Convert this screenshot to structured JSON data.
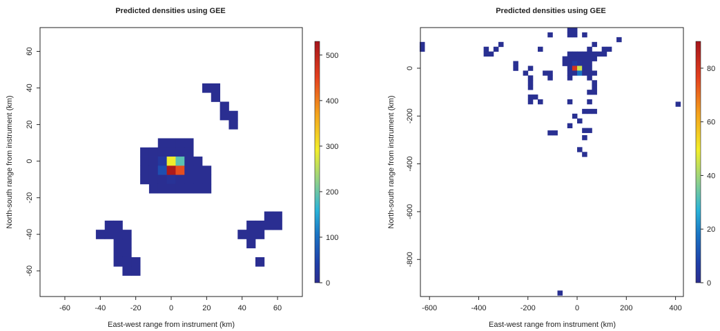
{
  "chart_data": [
    {
      "type": "heatmap",
      "title": "Predicted densities using GEE",
      "xlabel": "East-west range from instrument (km)",
      "ylabel": "North-south range from instrument (km)",
      "xlim": [
        -74,
        74
      ],
      "ylim": [
        -74,
        73
      ],
      "xticks": [
        "-60",
        "-40",
        "-20",
        "0",
        "20",
        "40",
        "60"
      ],
      "xtick_values": [
        -60,
        -40,
        -20,
        0,
        20,
        40,
        60
      ],
      "yticks": [
        "-60",
        "-40",
        "-20",
        "0",
        "20",
        "40",
        "60"
      ],
      "ytick_values": [
        -60,
        -40,
        -20,
        0,
        20,
        40,
        60
      ],
      "cell_size_km": 5,
      "colorbar": {
        "min": 0,
        "max": 530,
        "ticks": [
          "0",
          "100",
          "200",
          "300",
          "400",
          "500"
        ],
        "tick_values": [
          0,
          100,
          200,
          300,
          400,
          500
        ],
        "placement": "right"
      },
      "cells": [
        [
          20,
          40,
          3
        ],
        [
          25,
          40,
          3
        ],
        [
          25,
          35,
          3
        ],
        [
          30,
          30,
          3
        ],
        [
          30,
          25,
          3
        ],
        [
          35,
          25,
          3
        ],
        [
          35,
          20,
          3
        ],
        [
          -5,
          10,
          3
        ],
        [
          0,
          10,
          3
        ],
        [
          5,
          10,
          3
        ],
        [
          10,
          10,
          3
        ],
        [
          -15,
          5,
          3
        ],
        [
          -10,
          5,
          3
        ],
        [
          -5,
          5,
          3
        ],
        [
          0,
          5,
          3
        ],
        [
          5,
          5,
          3
        ],
        [
          10,
          5,
          3
        ],
        [
          -15,
          0,
          3
        ],
        [
          -10,
          0,
          3
        ],
        [
          -5,
          0,
          25
        ],
        [
          0,
          0,
          290
        ],
        [
          5,
          0,
          190
        ],
        [
          10,
          0,
          3
        ],
        [
          15,
          0,
          3
        ],
        [
          -15,
          -5,
          3
        ],
        [
          -10,
          -5,
          3
        ],
        [
          -5,
          -5,
          60
        ],
        [
          0,
          -5,
          520
        ],
        [
          5,
          -5,
          440
        ],
        [
          10,
          -5,
          3
        ],
        [
          15,
          -5,
          3
        ],
        [
          20,
          -5,
          3
        ],
        [
          -15,
          -10,
          3
        ],
        [
          -10,
          -10,
          3
        ],
        [
          -5,
          -10,
          3
        ],
        [
          0,
          -10,
          12
        ],
        [
          5,
          -10,
          3
        ],
        [
          10,
          -10,
          3
        ],
        [
          15,
          -10,
          3
        ],
        [
          20,
          -10,
          3
        ],
        [
          -10,
          -15,
          3
        ],
        [
          -5,
          -15,
          3
        ],
        [
          0,
          -15,
          3
        ],
        [
          5,
          -15,
          3
        ],
        [
          10,
          -15,
          3
        ],
        [
          15,
          -15,
          3
        ],
        [
          20,
          -15,
          3
        ],
        [
          55,
          -30,
          3
        ],
        [
          60,
          -30,
          3
        ],
        [
          45,
          -35,
          3
        ],
        [
          50,
          -35,
          3
        ],
        [
          55,
          -35,
          3
        ],
        [
          60,
          -35,
          3
        ],
        [
          40,
          -40,
          3
        ],
        [
          45,
          -40,
          3
        ],
        [
          50,
          -40,
          3
        ],
        [
          45,
          -45,
          3
        ],
        [
          50,
          -55,
          3
        ],
        [
          -35,
          -35,
          3
        ],
        [
          -30,
          -35,
          3
        ],
        [
          -40,
          -40,
          3
        ],
        [
          -35,
          -40,
          3
        ],
        [
          -30,
          -40,
          3
        ],
        [
          -25,
          -40,
          3
        ],
        [
          -30,
          -45,
          3
        ],
        [
          -25,
          -45,
          3
        ],
        [
          -30,
          -50,
          3
        ],
        [
          -25,
          -50,
          3
        ],
        [
          -30,
          -55,
          3
        ],
        [
          -25,
          -55,
          3
        ],
        [
          -20,
          -55,
          3
        ],
        [
          -25,
          -60,
          3
        ],
        [
          -20,
          -60,
          3
        ]
      ]
    },
    {
      "type": "heatmap",
      "title": "Predicted densities using GEE",
      "xlabel": "East-west range from instrument (km)",
      "ylabel": "North-south range from instrument (km)",
      "xlim": [
        -637,
        432
      ],
      "ylim": [
        -955,
        170
      ],
      "xticks": [
        "-600",
        "-400",
        "-200",
        "0",
        "200",
        "400"
      ],
      "xtick_values": [
        -600,
        -400,
        -200,
        0,
        200,
        400
      ],
      "yticks": [
        "0",
        "-200",
        "-400",
        "-600",
        "-800"
      ],
      "ytick_values": [
        0,
        -200,
        -400,
        -600,
        -800
      ],
      "cell_size_km": 20,
      "colorbar": {
        "min": 0,
        "max": 90,
        "ticks": [
          "0",
          "20",
          "40",
          "60",
          "80"
        ],
        "tick_values": [
          0,
          20,
          40,
          60,
          80
        ],
        "placement": "right"
      },
      "cells": [
        [
          -30,
          160,
          1
        ],
        [
          -10,
          160,
          1
        ],
        [
          -110,
          140,
          1
        ],
        [
          -30,
          140,
          1
        ],
        [
          -10,
          140,
          1
        ],
        [
          30,
          140,
          1
        ],
        [
          170,
          120,
          1
        ],
        [
          -630,
          100,
          1
        ],
        [
          -630,
          80,
          1
        ],
        [
          -310,
          100,
          1
        ],
        [
          -330,
          80,
          1
        ],
        [
          -370,
          80,
          1
        ],
        [
          -350,
          60,
          1
        ],
        [
          -370,
          60,
          1
        ],
        [
          70,
          100,
          1
        ],
        [
          -150,
          80,
          1
        ],
        [
          50,
          80,
          1
        ],
        [
          110,
          80,
          1
        ],
        [
          130,
          80,
          1
        ],
        [
          30,
          60,
          1
        ],
        [
          50,
          60,
          1
        ],
        [
          90,
          60,
          1
        ],
        [
          110,
          60,
          1
        ],
        [
          -30,
          60,
          1
        ],
        [
          -10,
          60,
          1
        ],
        [
          10,
          60,
          1
        ],
        [
          70,
          60,
          1
        ],
        [
          -50,
          40,
          1
        ],
        [
          -30,
          40,
          1
        ],
        [
          -10,
          40,
          1
        ],
        [
          10,
          40,
          1
        ],
        [
          30,
          40,
          1
        ],
        [
          50,
          40,
          1
        ],
        [
          70,
          40,
          1
        ],
        [
          -250,
          20,
          1
        ],
        [
          -50,
          20,
          1
        ],
        [
          -30,
          20,
          1
        ],
        [
          -10,
          20,
          6
        ],
        [
          10,
          20,
          2
        ],
        [
          30,
          20,
          1
        ],
        [
          50,
          20,
          1
        ],
        [
          -250,
          0,
          1
        ],
        [
          -190,
          0,
          1
        ],
        [
          -30,
          0,
          1
        ],
        [
          -10,
          0,
          80
        ],
        [
          10,
          0,
          45
        ],
        [
          30,
          0,
          1
        ],
        [
          50,
          0,
          1
        ],
        [
          -210,
          -20,
          1
        ],
        [
          -130,
          -20,
          1
        ],
        [
          -110,
          -20,
          1
        ],
        [
          -10,
          -20,
          1
        ],
        [
          -30,
          -20,
          1
        ],
        [
          10,
          -20,
          18
        ],
        [
          30,
          -20,
          1
        ],
        [
          50,
          -20,
          1
        ],
        [
          70,
          -20,
          1
        ],
        [
          -190,
          -40,
          1
        ],
        [
          -110,
          -40,
          1
        ],
        [
          -30,
          -40,
          1
        ],
        [
          50,
          -40,
          1
        ],
        [
          -190,
          -60,
          1
        ],
        [
          70,
          -60,
          1
        ],
        [
          -190,
          -80,
          1
        ],
        [
          70,
          -80,
          1
        ],
        [
          50,
          -100,
          1
        ],
        [
          70,
          -100,
          1
        ],
        [
          -190,
          -120,
          1
        ],
        [
          -170,
          -120,
          1
        ],
        [
          -190,
          -140,
          1
        ],
        [
          -150,
          -140,
          1
        ],
        [
          -30,
          -140,
          1
        ],
        [
          50,
          -140,
          1
        ],
        [
          410,
          -150,
          1
        ],
        [
          30,
          -180,
          1
        ],
        [
          50,
          -180,
          1
        ],
        [
          70,
          -180,
          1
        ],
        [
          -10,
          -200,
          1
        ],
        [
          10,
          -220,
          1
        ],
        [
          -30,
          -240,
          1
        ],
        [
          50,
          -260,
          1
        ],
        [
          30,
          -260,
          1
        ],
        [
          -110,
          -270,
          1
        ],
        [
          -90,
          -270,
          1
        ],
        [
          30,
          -290,
          1
        ],
        [
          10,
          -340,
          1
        ],
        [
          30,
          -360,
          1
        ],
        [
          -70,
          -940,
          1
        ]
      ]
    }
  ]
}
